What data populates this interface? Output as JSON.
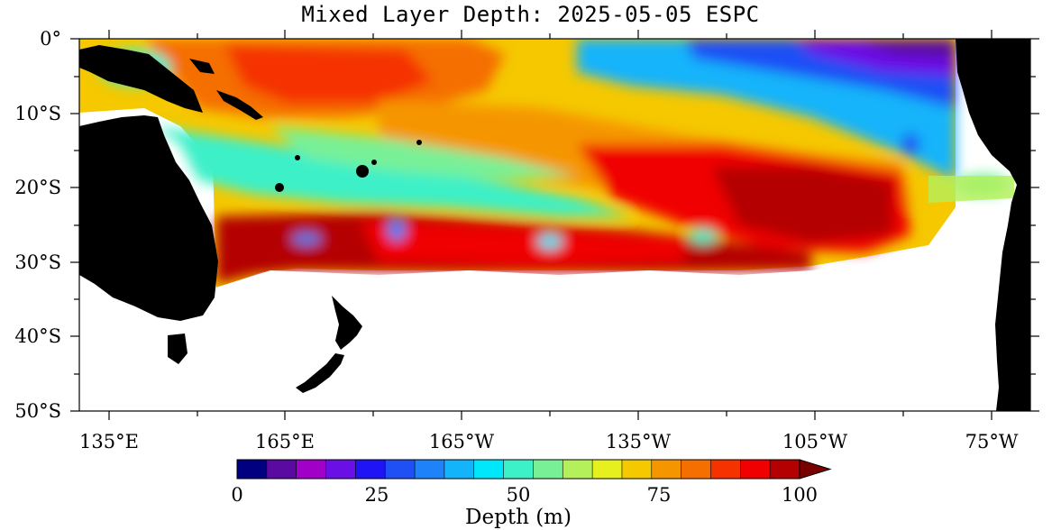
{
  "title": "Mixed Layer Depth: 2025-05-05 ESPC",
  "map": {
    "lat_labels": [
      "0°",
      "10°S",
      "20°S",
      "30°S",
      "40°S",
      "50°S"
    ],
    "lon_labels": [
      "135°E",
      "165°E",
      "165°W",
      "135°W",
      "105°W",
      "75°W"
    ]
  },
  "colorbar": {
    "label": "Depth (m)",
    "tick_labels": [
      "0",
      "25",
      "50",
      "75",
      "100"
    ],
    "colors": [
      "#000080",
      "#5a0aa0",
      "#a000c8",
      "#6a10e6",
      "#1e14f5",
      "#1e50f5",
      "#1e82fa",
      "#14b4fa",
      "#00e6fa",
      "#3cf0c8",
      "#78f096",
      "#b4f05a",
      "#e6f01e",
      "#f5c800",
      "#f59600",
      "#f56e00",
      "#f53200",
      "#f00000",
      "#b40000"
    ],
    "overflow_color": "#780000"
  },
  "colors": {
    "land": "#000000",
    "missing": "#ffffff"
  }
}
